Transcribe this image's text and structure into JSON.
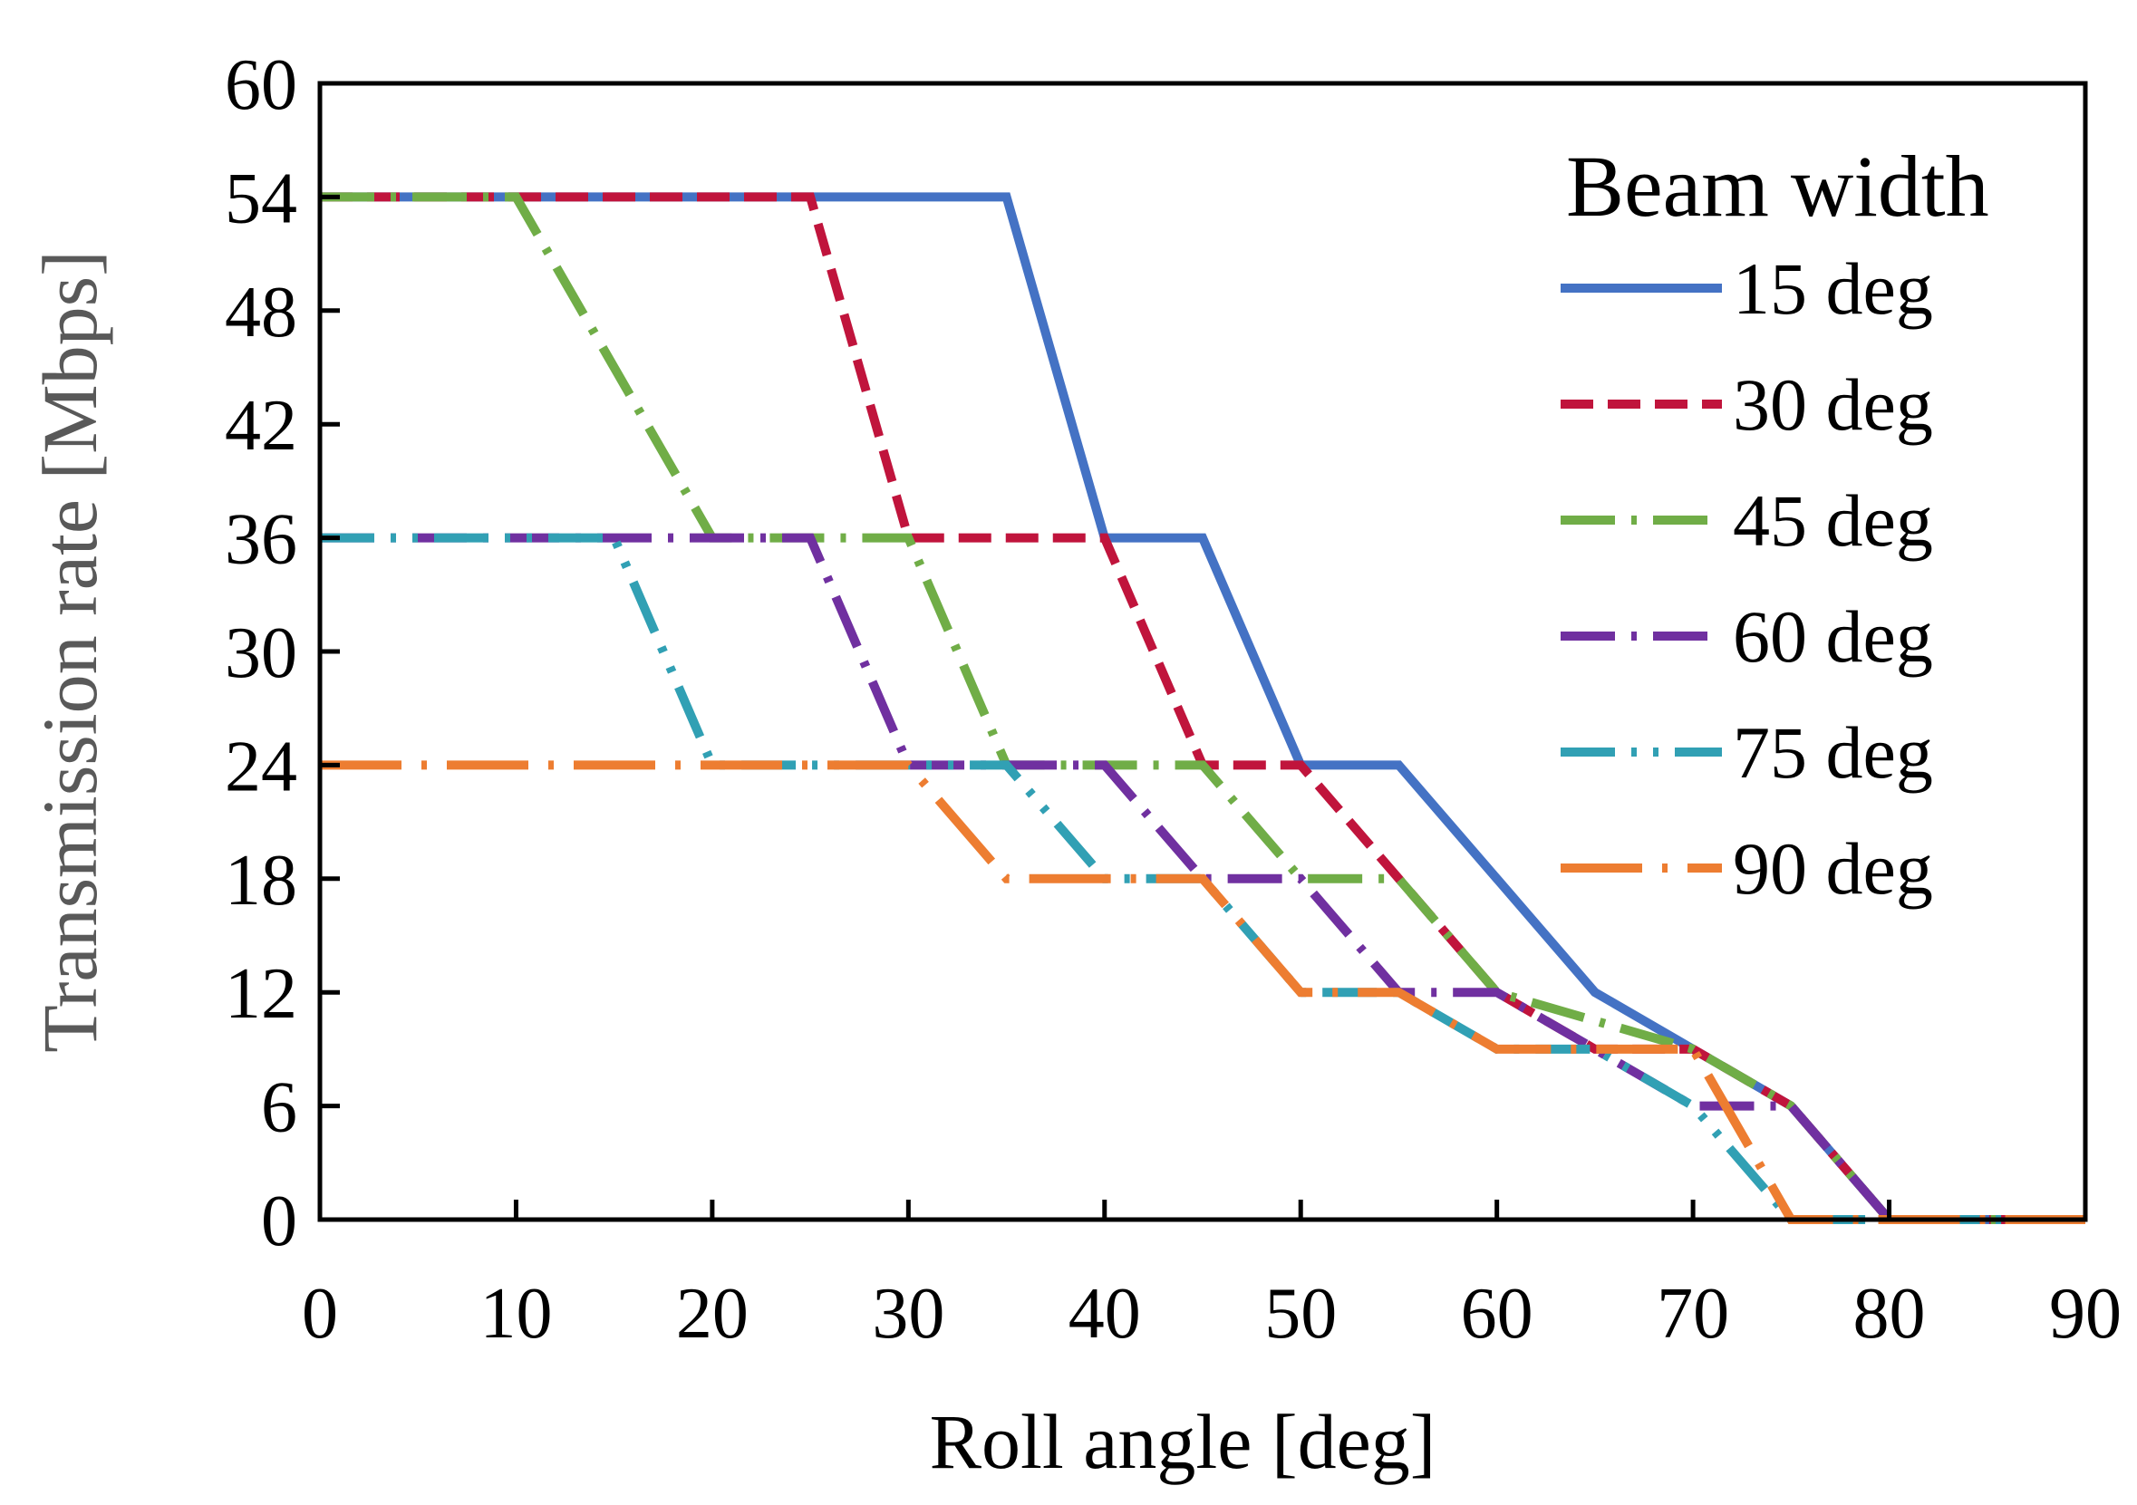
{
  "chart_data": {
    "type": "line",
    "title": "",
    "xlabel": "Roll angle [deg]",
    "ylabel": "Transmission rate [Mbps]",
    "xlim": [
      0,
      90
    ],
    "ylim": [
      0,
      60
    ],
    "xticks": [
      0,
      10,
      20,
      30,
      40,
      50,
      60,
      70,
      80,
      90
    ],
    "yticks": [
      0,
      6,
      12,
      18,
      24,
      30,
      36,
      42,
      48,
      54,
      60
    ],
    "grid": false,
    "legend": {
      "title": "Beam width",
      "position": "top-right"
    },
    "series": [
      {
        "name": "15 deg",
        "color": "#4472C4",
        "dash": "solid",
        "points": [
          [
            0,
            54
          ],
          [
            35,
            54
          ],
          [
            40,
            36
          ],
          [
            45,
            36
          ],
          [
            50,
            24
          ],
          [
            55,
            24
          ],
          [
            60,
            18
          ],
          [
            65,
            12
          ],
          [
            70,
            9
          ],
          [
            75,
            6
          ],
          [
            80,
            0
          ],
          [
            90,
            0
          ]
        ]
      },
      {
        "name": "30 deg",
        "color": "#C0143C",
        "dash": "dash",
        "points": [
          [
            0,
            54
          ],
          [
            25,
            54
          ],
          [
            30,
            36
          ],
          [
            40,
            36
          ],
          [
            45,
            24
          ],
          [
            50,
            24
          ],
          [
            60,
            12
          ],
          [
            65,
            9
          ],
          [
            70,
            9
          ],
          [
            75,
            6
          ],
          [
            80,
            0
          ],
          [
            90,
            0
          ]
        ]
      },
      {
        "name": "45 deg",
        "color": "#70AD47",
        "dash": "dash-dot",
        "points": [
          [
            0,
            54
          ],
          [
            10,
            54
          ],
          [
            20,
            36
          ],
          [
            30,
            36
          ],
          [
            35,
            24
          ],
          [
            45,
            24
          ],
          [
            50,
            18
          ],
          [
            55,
            18
          ],
          [
            60,
            12
          ],
          [
            70,
            9
          ],
          [
            75,
            6
          ],
          [
            80,
            0
          ],
          [
            90,
            0
          ]
        ]
      },
      {
        "name": "60 deg",
        "color": "#7030A0",
        "dash": "dash-dot",
        "points": [
          [
            0,
            36
          ],
          [
            25,
            36
          ],
          [
            30,
            24
          ],
          [
            40,
            24
          ],
          [
            45,
            18
          ],
          [
            50,
            18
          ],
          [
            55,
            12
          ],
          [
            60,
            12
          ],
          [
            65,
            9
          ],
          [
            70,
            6
          ],
          [
            75,
            6
          ],
          [
            80,
            0
          ],
          [
            90,
            0
          ]
        ]
      },
      {
        "name": "75 deg",
        "color": "#31A0B4",
        "dash": "dash-dot-dot",
        "points": [
          [
            0,
            36
          ],
          [
            15,
            36
          ],
          [
            20,
            24
          ],
          [
            35,
            24
          ],
          [
            40,
            18
          ],
          [
            45,
            18
          ],
          [
            50,
            12
          ],
          [
            55,
            12
          ],
          [
            60,
            9
          ],
          [
            65,
            9
          ],
          [
            70,
            6
          ],
          [
            75,
            0
          ],
          [
            90,
            0
          ]
        ]
      },
      {
        "name": "90 deg",
        "color": "#ED7D31",
        "dash": "long-dash-dot",
        "points": [
          [
            0,
            24
          ],
          [
            30,
            24
          ],
          [
            35,
            18
          ],
          [
            45,
            18
          ],
          [
            50,
            12
          ],
          [
            55,
            12
          ],
          [
            60,
            9
          ],
          [
            70,
            9
          ],
          [
            75,
            0
          ],
          [
            90,
            0
          ]
        ]
      }
    ]
  }
}
